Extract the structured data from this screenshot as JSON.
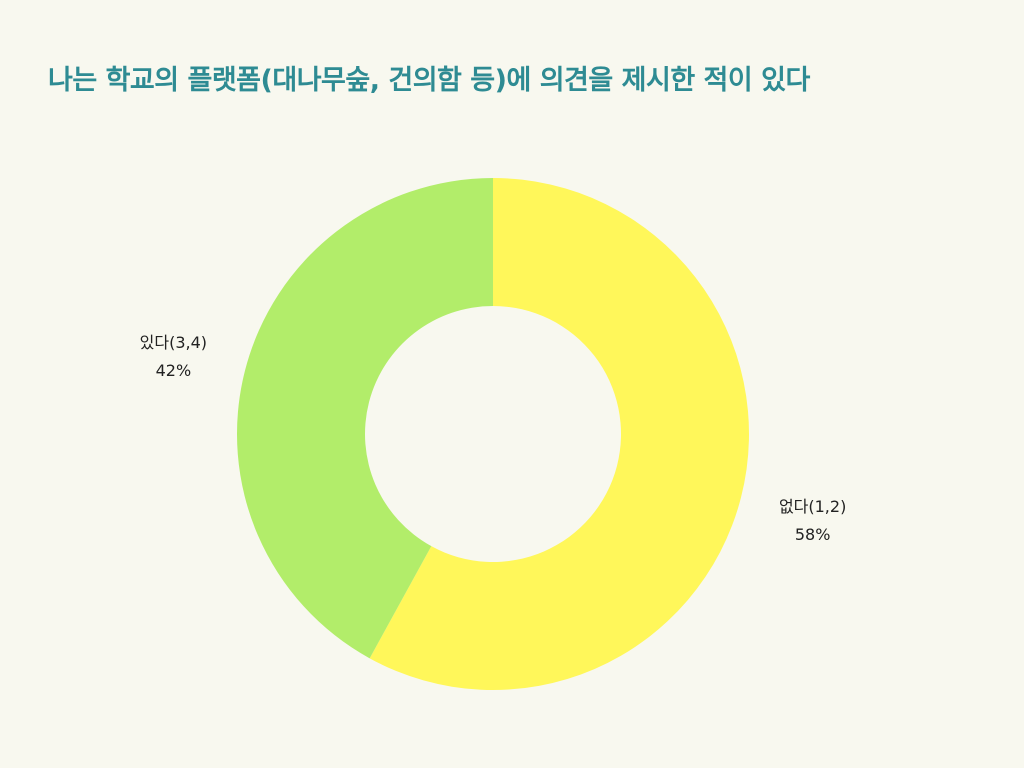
{
  "title": "나는 학교의 플랫폼(대나무숲, 건의함 등)에 의견을 제시한 적이 있다",
  "theme": {
    "background": "#f8f8ef",
    "title_color": "#2e8b93",
    "label_color": "#222222"
  },
  "chart_data": {
    "type": "pie",
    "style": "donut",
    "title": "나는 학교의 플랫폼(대나무숲, 건의함 등)에 의견을 제시한 적이 있다",
    "start_angle_deg": 0,
    "direction": "clockwise",
    "slices": [
      {
        "label": "없다(1,2)",
        "value": 58,
        "value_label": "58%",
        "color": "#fff75a"
      },
      {
        "label": "있다(3,4)",
        "value": 42,
        "value_label": "42%",
        "color": "#b2ed6a"
      }
    ]
  }
}
